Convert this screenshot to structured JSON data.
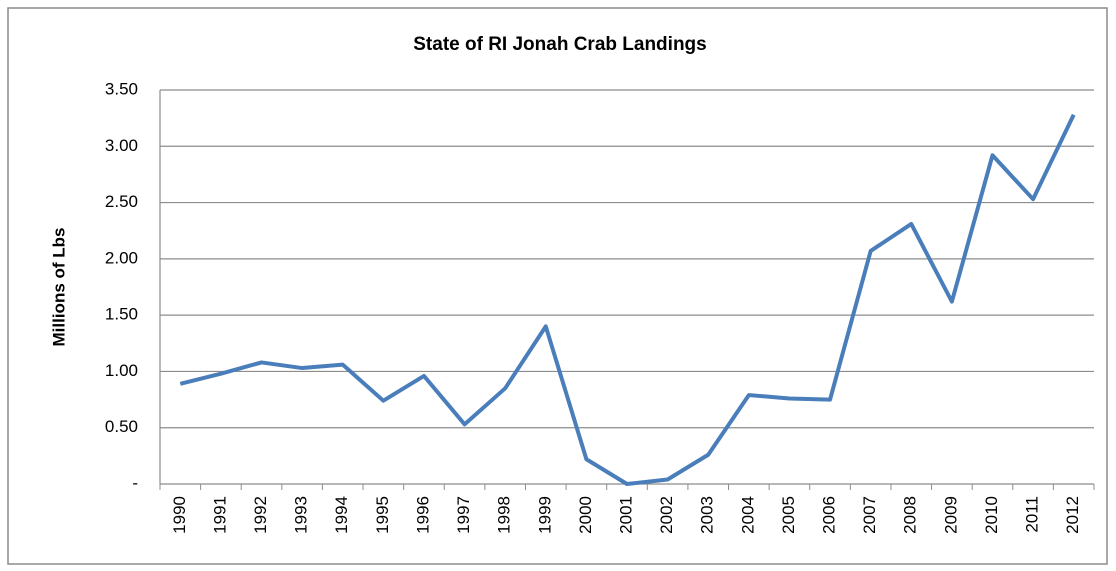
{
  "chart_data": {
    "type": "line",
    "title": "State of RI Jonah Crab Landings",
    "y_label": "Millions of Lbs",
    "categories": [
      "1990",
      "1991",
      "1992",
      "1993",
      "1994",
      "1995",
      "1996",
      "1997",
      "1998",
      "1999",
      "2000",
      "2001",
      "2002",
      "2003",
      "2004",
      "2005",
      "2006",
      "2007",
      "2008",
      "2009",
      "2010",
      "2011",
      "2012"
    ],
    "values": [
      0.89,
      0.98,
      1.08,
      1.03,
      1.06,
      0.74,
      0.96,
      0.53,
      0.85,
      1.4,
      0.22,
      0.0,
      0.04,
      0.26,
      0.79,
      0.76,
      0.75,
      2.07,
      2.31,
      1.62,
      2.92,
      2.53,
      3.28
    ],
    "color": "#4a7ebb",
    "ylim": [
      0,
      3.5
    ],
    "yticks": [
      {
        "value": 0,
        "label": "-"
      },
      {
        "value": 0.5,
        "label": "0.50"
      },
      {
        "value": 1,
        "label": "1.00"
      },
      {
        "value": 1.5,
        "label": "1.50"
      },
      {
        "value": 2,
        "label": "2.00"
      },
      {
        "value": 2.5,
        "label": "2.50"
      },
      {
        "value": 3,
        "label": "3.00"
      },
      {
        "value": 3.5,
        "label": "3.50"
      }
    ],
    "grid": true
  }
}
